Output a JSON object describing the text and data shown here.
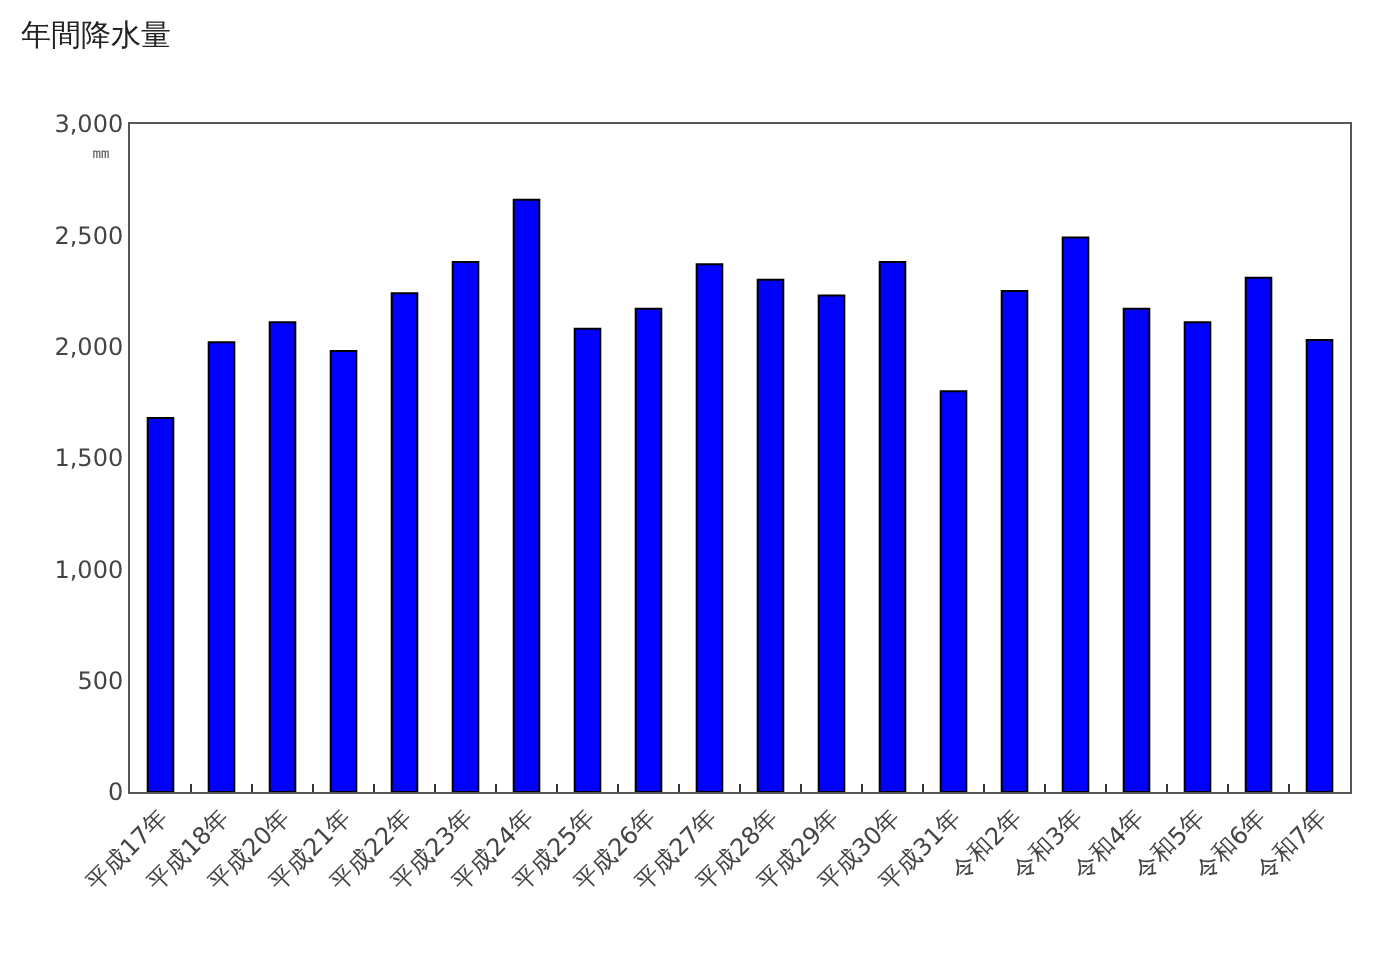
{
  "chart_data": {
    "type": "bar",
    "title": "年間降水量",
    "ylabel": "㎜",
    "categories": [
      "平成17年",
      "平成18年",
      "平成20年",
      "平成21年",
      "平成22年",
      "平成23年",
      "平成24年",
      "平成25年",
      "平成26年",
      "平成27年",
      "平成28年",
      "平成29年",
      "平成30年",
      "平成31年",
      "令和2年",
      "令和3年",
      "令和4年",
      "令和5年",
      "令和6年",
      "令和7年"
    ],
    "values": [
      1680,
      2020,
      2110,
      1980,
      2240,
      2380,
      2660,
      2080,
      2170,
      2370,
      2300,
      2230,
      2380,
      1800,
      2250,
      2490,
      2170,
      2110,
      2310,
      2030
    ],
    "color": "#0000ff",
    "ylim": [
      0,
      3000
    ],
    "yticks": [
      {
        "value": 0,
        "label": "0"
      },
      {
        "value": 500,
        "label": "500"
      },
      {
        "value": 1000,
        "label": "1,000"
      },
      {
        "value": 1500,
        "label": "1,500"
      },
      {
        "value": 2000,
        "label": "2,000"
      },
      {
        "value": 2500,
        "label": "2,500"
      },
      {
        "value": 3000,
        "label": "3,000"
      }
    ]
  }
}
